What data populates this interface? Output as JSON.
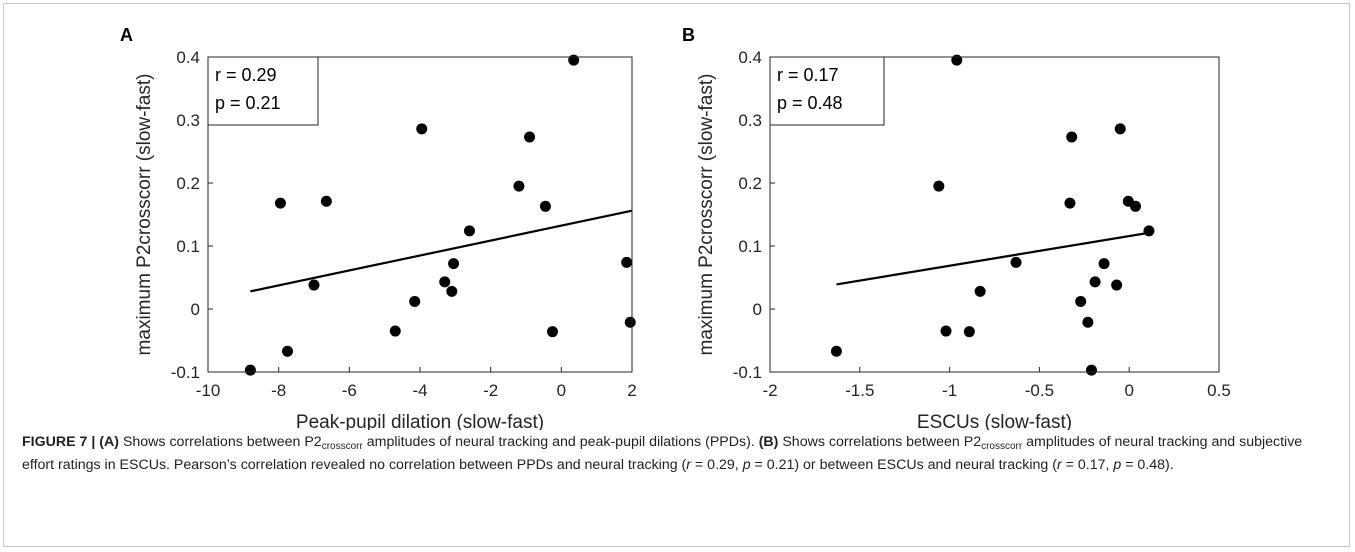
{
  "chart_data": [
    {
      "type": "scatter",
      "panel_label": "A",
      "xlabel": "Peak-pupil dilation (slow-fast)",
      "ylabel": "maximum P2crosscorr (slow-fast)",
      "xlim": [
        -10,
        2
      ],
      "ylim": [
        -0.1,
        0.4
      ],
      "xticks": [
        "-10",
        "-8",
        "-6",
        "-4",
        "-2",
        "0",
        "2"
      ],
      "yticks": [
        "-0.1",
        "0",
        "0.1",
        "0.2",
        "0.3",
        "0.4"
      ],
      "annotation": [
        "r = 0.29",
        "p = 0.21"
      ],
      "annotation_position": "top-left",
      "grid": false,
      "points": [
        {
          "x": 0.35,
          "y": 0.395
        },
        {
          "x": -3.95,
          "y": 0.286
        },
        {
          "x": -0.9,
          "y": 0.273
        },
        {
          "x": -1.2,
          "y": 0.195
        },
        {
          "x": -6.65,
          "y": 0.171
        },
        {
          "x": -7.95,
          "y": 0.168
        },
        {
          "x": -0.45,
          "y": 0.163
        },
        {
          "x": -2.6,
          "y": 0.124
        },
        {
          "x": 1.85,
          "y": 0.074
        },
        {
          "x": -3.05,
          "y": 0.072
        },
        {
          "x": -3.3,
          "y": 0.043
        },
        {
          "x": -7.0,
          "y": 0.038
        },
        {
          "x": -3.1,
          "y": 0.028
        },
        {
          "x": -4.15,
          "y": 0.012
        },
        {
          "x": 1.95,
          "y": -0.021
        },
        {
          "x": -4.7,
          "y": -0.035
        },
        {
          "x": -0.25,
          "y": -0.036
        },
        {
          "x": -7.75,
          "y": -0.067
        },
        {
          "x": -8.8,
          "y": -0.097
        }
      ],
      "fit_line": {
        "x": [
          -8.8,
          2.0
        ],
        "y": [
          0.028,
          0.156
        ]
      }
    },
    {
      "type": "scatter",
      "panel_label": "B",
      "xlabel": "ESCUs (slow-fast)",
      "ylabel": "maximum P2crosscorr (slow-fast)",
      "xlim": [
        -2,
        0.5
      ],
      "ylim": [
        -0.1,
        0.4
      ],
      "xticks": [
        "-2",
        "-1.5",
        "-1",
        "-0.5",
        "0",
        "0.5"
      ],
      "yticks": [
        "-0.1",
        "0",
        "0.1",
        "0.2",
        "0.3",
        "0.4"
      ],
      "annotation": [
        "r = 0.17",
        "p = 0.48"
      ],
      "annotation_position": "top-left",
      "grid": false,
      "points": [
        {
          "x": -0.96,
          "y": 0.395
        },
        {
          "x": -0.05,
          "y": 0.286
        },
        {
          "x": -0.32,
          "y": 0.273
        },
        {
          "x": -1.06,
          "y": 0.195
        },
        {
          "x": -0.005,
          "y": 0.171
        },
        {
          "x": -0.33,
          "y": 0.168
        },
        {
          "x": 0.035,
          "y": 0.163
        },
        {
          "x": 0.11,
          "y": 0.124
        },
        {
          "x": -0.63,
          "y": 0.074
        },
        {
          "x": -0.14,
          "y": 0.072
        },
        {
          "x": -0.19,
          "y": 0.043
        },
        {
          "x": -0.07,
          "y": 0.038
        },
        {
          "x": -0.83,
          "y": 0.028
        },
        {
          "x": -0.27,
          "y": 0.012
        },
        {
          "x": -0.23,
          "y": -0.021
        },
        {
          "x": -1.02,
          "y": -0.035
        },
        {
          "x": -0.89,
          "y": -0.036
        },
        {
          "x": -1.63,
          "y": -0.067
        },
        {
          "x": -0.21,
          "y": -0.097
        }
      ],
      "fit_line": {
        "x": [
          -1.63,
          0.11
        ],
        "y": [
          0.039,
          0.121
        ]
      }
    }
  ],
  "caption": {
    "figure_label": "FIGURE 7 |",
    "a_label": "(A)",
    "s1": " Shows correlations between P2",
    "sub1": "crosscorr",
    "s2": " amplitudes of neural tracking and peak-pupil dilations (PPDs). ",
    "b_label": "(B)",
    "s3": " Shows correlations between P2",
    "sub2": "crosscorr",
    "s4": " amplitudes of neural tracking and subjective effort ratings in ESCUs. Pearson’s correlation revealed no correlation between PPDs and neural tracking (",
    "r1": "r",
    "s5": " = 0.29, ",
    "p1": "p",
    "s6": " = 0.21) or between ESCUs and neural tracking (",
    "r2": "r",
    "s7": " = 0.17, ",
    "p2": "p",
    "s8": " = 0.48)."
  }
}
